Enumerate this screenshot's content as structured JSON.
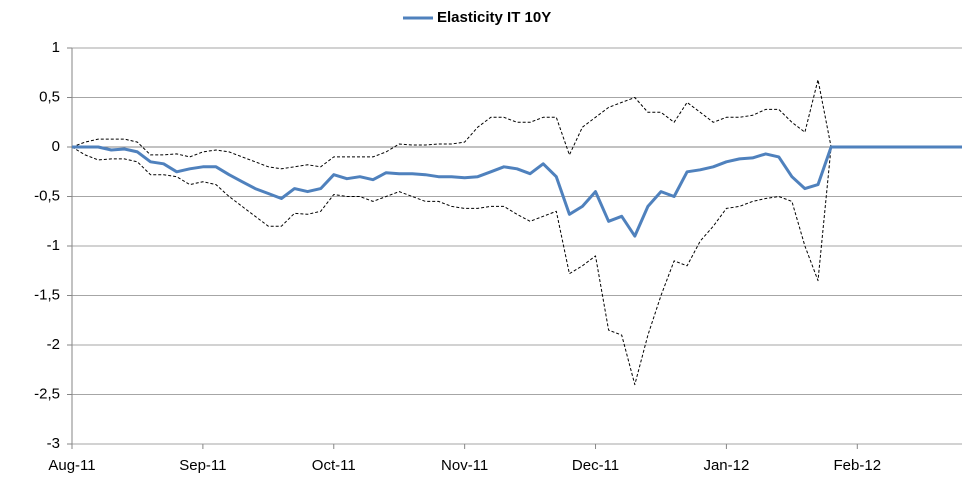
{
  "chart_data": {
    "type": "line",
    "categories": [
      "Aug-11",
      null,
      null,
      null,
      null,
      null,
      null,
      null,
      null,
      null,
      "Sep-11",
      null,
      null,
      null,
      null,
      null,
      null,
      null,
      null,
      null,
      "Oct-11",
      null,
      null,
      null,
      null,
      null,
      null,
      null,
      null,
      null,
      "Nov-11",
      null,
      null,
      null,
      null,
      null,
      null,
      null,
      null,
      null,
      "Dec-11",
      null,
      null,
      null,
      null,
      null,
      null,
      null,
      null,
      null,
      "Jan-12",
      null,
      null,
      null,
      null,
      null,
      null,
      null,
      null,
      null,
      "Feb-12",
      null,
      null,
      null,
      null,
      null,
      null,
      null,
      null
    ],
    "series": [
      {
        "name": "Elasticity IT 10Y",
        "color": "#4f81bd",
        "values": [
          0,
          0,
          0,
          -0.03,
          -0.02,
          -0.05,
          -0.15,
          -0.17,
          -0.25,
          -0.22,
          -0.2,
          -0.2,
          -0.28,
          -0.35,
          -0.42,
          -0.47,
          -0.52,
          -0.42,
          -0.45,
          -0.42,
          -0.28,
          -0.32,
          -0.3,
          -0.33,
          -0.26,
          -0.27,
          -0.27,
          -0.28,
          -0.3,
          -0.3,
          -0.31,
          -0.3,
          -0.25,
          -0.2,
          -0.22,
          -0.27,
          -0.17,
          -0.3,
          -0.68,
          -0.6,
          -0.45,
          -0.75,
          -0.7,
          -0.9,
          -0.6,
          -0.45,
          -0.5,
          -0.25,
          -0.23,
          -0.2,
          -0.15,
          -0.12,
          -0.11,
          -0.07,
          -0.1,
          -0.3,
          -0.42,
          -0.38,
          0,
          0,
          0,
          0,
          0,
          0,
          0,
          0,
          0,
          0,
          0
        ]
      },
      {
        "color": "#000000",
        "dashed": true,
        "values": [
          0,
          0.05,
          0.08,
          0.08,
          0.08,
          0.05,
          -0.08,
          -0.08,
          -0.07,
          -0.1,
          -0.05,
          -0.03,
          -0.05,
          -0.1,
          -0.15,
          -0.2,
          -0.22,
          -0.2,
          -0.18,
          -0.2,
          -0.1,
          -0.1,
          -0.1,
          -0.1,
          -0.05,
          0.03,
          0.02,
          0.02,
          0.03,
          0.03,
          0.05,
          0.2,
          0.3,
          0.3,
          0.25,
          0.25,
          0.3,
          0.3,
          -0.08,
          0.2,
          0.3,
          0.4,
          0.45,
          0.5,
          0.35,
          0.35,
          0.25,
          0.45,
          0.35,
          0.25,
          0.3,
          0.3,
          0.32,
          0.38,
          0.38,
          0.25,
          0.15,
          0.68,
          0,
          0,
          0,
          0,
          0,
          0,
          0,
          0,
          0,
          0,
          0
        ]
      },
      {
        "color": "#000000",
        "dashed": true,
        "values": [
          0,
          -0.08,
          -0.13,
          -0.12,
          -0.12,
          -0.15,
          -0.28,
          -0.28,
          -0.3,
          -0.38,
          -0.35,
          -0.38,
          -0.5,
          -0.6,
          -0.7,
          -0.8,
          -0.8,
          -0.67,
          -0.68,
          -0.65,
          -0.48,
          -0.5,
          -0.5,
          -0.55,
          -0.5,
          -0.45,
          -0.5,
          -0.55,
          -0.55,
          -0.6,
          -0.62,
          -0.62,
          -0.6,
          -0.6,
          -0.68,
          -0.75,
          -0.7,
          -0.65,
          -1.28,
          -1.2,
          -1.1,
          -1.85,
          -1.9,
          -2.4,
          -1.9,
          -1.5,
          -1.15,
          -1.2,
          -0.95,
          -0.8,
          -0.62,
          -0.6,
          -0.55,
          -0.52,
          -0.5,
          -0.55,
          -1.0,
          -1.35,
          0,
          0,
          0,
          0,
          0,
          0,
          0,
          0,
          0,
          0,
          0
        ]
      }
    ],
    "ylim": [
      -3,
      1
    ],
    "yticks": [
      -3,
      {
        "value": -2.5,
        "label": "-2,5"
      },
      -2,
      {
        "value": -1.5,
        "label": "-1,5"
      },
      -1,
      {
        "value": -0.5,
        "label": "-0,5"
      },
      0,
      {
        "value": 0.5,
        "label": "0,5"
      },
      1
    ],
    "grid": true,
    "legend": "top"
  }
}
